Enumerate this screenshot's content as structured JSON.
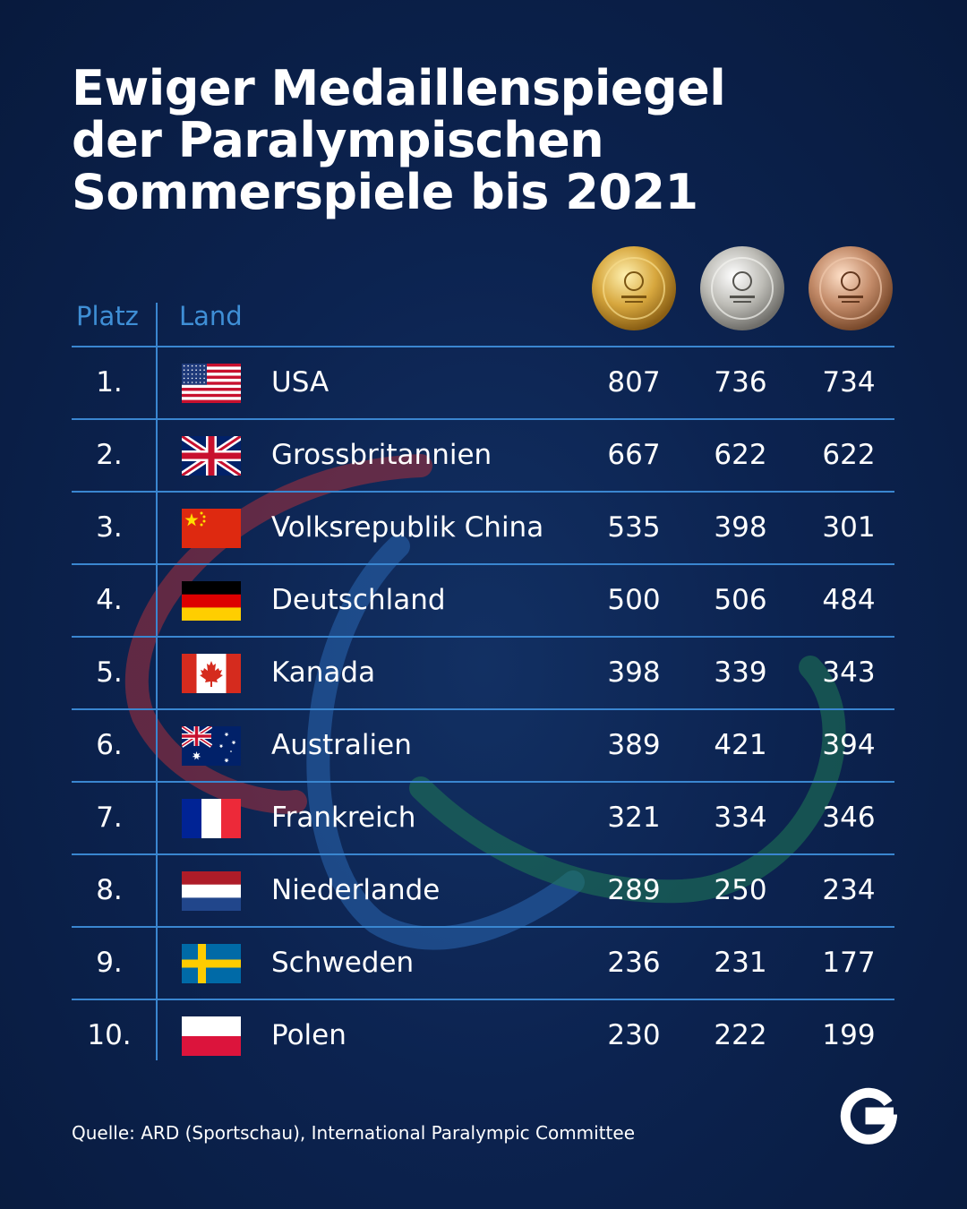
{
  "title_lines": [
    "Ewiger Medaillenspiegel",
    "der Paralympischen",
    "Sommerspiele bis 2021"
  ],
  "headers": {
    "rank": "Platz",
    "country": "Land"
  },
  "medal_icons": [
    "gold-medal-icon",
    "silver-medal-icon",
    "bronze-medal-icon"
  ],
  "source": "Quelle: ARD (Sportschau), International Paralympic Committee",
  "colors": {
    "background": "#0c2350",
    "accent_blue": "#3a86d0",
    "text": "#ffffff"
  },
  "chart_data": {
    "type": "table",
    "columns": [
      "Platz",
      "Land",
      "Gold",
      "Silber",
      "Bronze"
    ],
    "rows": [
      {
        "rank": "1.",
        "country": "USA",
        "flag": "usa-flag-icon",
        "gold": 807,
        "silver": 736,
        "bronze": 734
      },
      {
        "rank": "2.",
        "country": "Grossbritannien",
        "flag": "uk-flag-icon",
        "gold": 667,
        "silver": 622,
        "bronze": 622
      },
      {
        "rank": "3.",
        "country": "Volksrepublik China",
        "flag": "china-flag-icon",
        "gold": 535,
        "silver": 398,
        "bronze": 301
      },
      {
        "rank": "4.",
        "country": "Deutschland",
        "flag": "germany-flag-icon",
        "gold": 500,
        "silver": 506,
        "bronze": 484
      },
      {
        "rank": "5.",
        "country": "Kanada",
        "flag": "canada-flag-icon",
        "gold": 398,
        "silver": 339,
        "bronze": 343
      },
      {
        "rank": "6.",
        "country": "Australien",
        "flag": "australia-flag-icon",
        "gold": 389,
        "silver": 421,
        "bronze": 394
      },
      {
        "rank": "7.",
        "country": "Frankreich",
        "flag": "france-flag-icon",
        "gold": 321,
        "silver": 334,
        "bronze": 346
      },
      {
        "rank": "8.",
        "country": "Niederlande",
        "flag": "netherlands-flag-icon",
        "gold": 289,
        "silver": 250,
        "bronze": 234
      },
      {
        "rank": "9.",
        "country": "Schweden",
        "flag": "sweden-flag-icon",
        "gold": 236,
        "silver": 231,
        "bronze": 177
      },
      {
        "rank": "10.",
        "country": "Polen",
        "flag": "poland-flag-icon",
        "gold": 230,
        "silver": 222,
        "bronze": 199
      }
    ]
  }
}
